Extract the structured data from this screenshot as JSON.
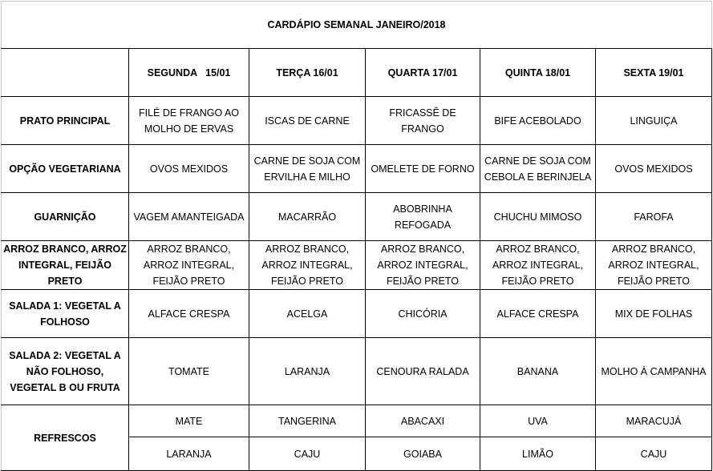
{
  "title": "CARDÁPIO SEMANAL JANEIRO/2018",
  "days": [
    "SEGUNDA   15/01",
    "TERÇA 16/01",
    "QUARTA 17/01",
    "QUINTA 18/01",
    "SEXTA 19/01"
  ],
  "rows": [
    {
      "label": "PRATO PRINCIPAL",
      "cells": [
        "FILÉ DE FRANGO AO MOLHO DE ERVAS",
        "ISCAS DE CARNE",
        "FRICASSÊ DE FRANGO",
        "BIFE ACEBOLADO",
        "LINGUIÇA"
      ]
    },
    {
      "label": "OPÇÃO VEGETARIANA",
      "cells": [
        "OVOS MEXIDOS",
        "CARNE DE SOJA COM ERVILHA E MILHO",
        "OMELETE DE FORNO",
        "CARNE DE SOJA COM CEBOLA E BERINJELA",
        "OVOS MEXIDOS"
      ]
    },
    {
      "label": "GUARNIÇÃO",
      "cells": [
        "VAGEM AMANTEIGADA",
        "MACARRÃO",
        "ABOBRINHA REFOGADA",
        "CHUCHU MIMOSO",
        "FAROFA"
      ]
    },
    {
      "label": "ARROZ BRANCO, ARROZ INTEGRAL, FEIJÃO PRETO",
      "cells": [
        "ARROZ BRANCO, ARROZ INTEGRAL, FEIJÃO PRETO",
        "ARROZ BRANCO, ARROZ INTEGRAL, FEIJÃO PRETO",
        "ARROZ BRANCO, ARROZ INTEGRAL, FEIJÃO PRETO",
        "ARROZ BRANCO, ARROZ INTEGRAL, FEIJÃO PRETO",
        "ARROZ BRANCO, ARROZ INTEGRAL, FEIJÃO PRETO"
      ]
    },
    {
      "label": "SALADA 1: VEGETAL A FOLHOSO",
      "cells": [
        "ALFACE CRESPA",
        "ACELGA",
        "CHICÓRIA",
        "ALFACE CRESPA",
        "MIX DE FOLHAS"
      ]
    },
    {
      "label": "SALADA 2: VEGETAL A NÃO FOLHOSO, VEGETAL B OU FRUTA",
      "cells": [
        "TOMATE",
        "LARANJA",
        "CENOURA RALADA",
        "BANANA",
        "MOLHO À CAMPANHA"
      ]
    }
  ],
  "refrescos": {
    "label": "REFRESCOS",
    "line1": [
      "MATE",
      "TANGERINA",
      "ABACAXI",
      "UVA",
      "MARACUJÁ"
    ],
    "line2": [
      "LARANJA",
      "CAJU",
      "GOIABA",
      "LIMÃO",
      "CAJU"
    ]
  }
}
